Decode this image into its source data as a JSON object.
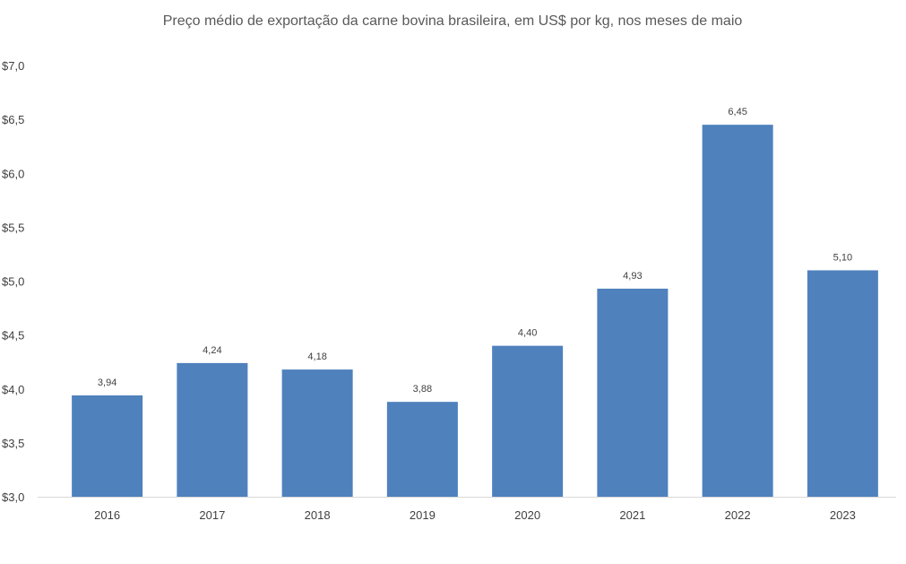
{
  "colors": {
    "bar": "#4f81bd",
    "axis": "#d9d9d9"
  },
  "chart_data": {
    "type": "bar",
    "title": "Preço médio de exportação da carne bovina brasileira, em US$ por kg, nos meses de maio",
    "categories": [
      "2016",
      "2017",
      "2018",
      "2019",
      "2020",
      "2021",
      "2022",
      "2023"
    ],
    "values": [
      3.94,
      4.24,
      4.18,
      3.88,
      4.4,
      4.93,
      6.45,
      5.1
    ],
    "data_labels": [
      "3,94",
      "4,24",
      "4,18",
      "3,88",
      "4,40",
      "4,93",
      "6,45",
      "5,10"
    ],
    "ylim": [
      3.0,
      7.0
    ],
    "yticks": [
      3.0,
      3.5,
      4.0,
      4.5,
      5.0,
      5.5,
      6.0,
      6.5,
      7.0
    ],
    "ytick_labels": [
      "$3,0",
      "$3,5",
      "$4,0",
      "$4,5",
      "$5,0",
      "$5,5",
      "$6,0",
      "$6,5",
      "$7,0"
    ],
    "xlabel": "",
    "ylabel": "",
    "grid": false
  }
}
